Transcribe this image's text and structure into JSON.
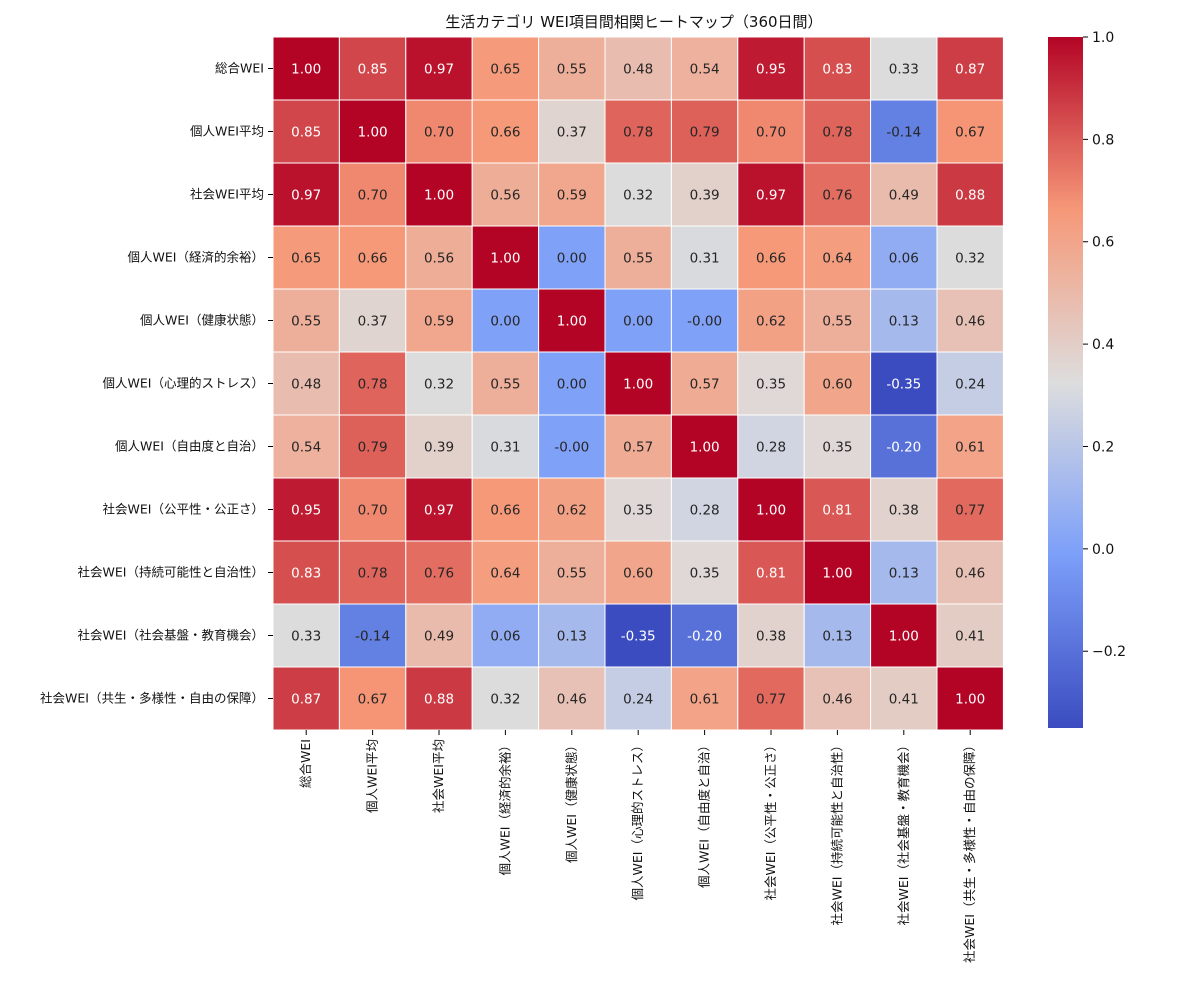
{
  "chart_data": {
    "type": "heatmap",
    "title": "生活カテゴリ WEI項目間相関ヒートマップ（360日間）",
    "labels": [
      "総合WEI",
      "個人WEI平均",
      "社会WEI平均",
      "個人WEI（経済的余裕）",
      "個人WEI（健康状態）",
      "個人WEI（心理的ストレス）",
      "個人WEI（自由度と自治）",
      "社会WEI（公平性・公正さ）",
      "社会WEI（持続可能性と自治性）",
      "社会WEI（社会基盤・教育機会）",
      "社会WEI（共生・多様性・自由の保障）"
    ],
    "display": [
      [
        "1.00",
        "0.85",
        "0.97",
        "0.65",
        "0.55",
        "0.48",
        "0.54",
        "0.95",
        "0.83",
        "0.33",
        "0.87"
      ],
      [
        "0.85",
        "1.00",
        "0.70",
        "0.66",
        "0.37",
        "0.78",
        "0.79",
        "0.70",
        "0.78",
        "-0.14",
        "0.67"
      ],
      [
        "0.97",
        "0.70",
        "1.00",
        "0.56",
        "0.59",
        "0.32",
        "0.39",
        "0.97",
        "0.76",
        "0.49",
        "0.88"
      ],
      [
        "0.65",
        "0.66",
        "0.56",
        "1.00",
        "0.00",
        "0.55",
        "0.31",
        "0.66",
        "0.64",
        "0.06",
        "0.32"
      ],
      [
        "0.55",
        "0.37",
        "0.59",
        "0.00",
        "1.00",
        "0.00",
        "-0.00",
        "0.62",
        "0.55",
        "0.13",
        "0.46"
      ],
      [
        "0.48",
        "0.78",
        "0.32",
        "0.55",
        "0.00",
        "1.00",
        "0.57",
        "0.35",
        "0.60",
        "-0.35",
        "0.24"
      ],
      [
        "0.54",
        "0.79",
        "0.39",
        "0.31",
        "-0.00",
        "0.57",
        "1.00",
        "0.28",
        "0.35",
        "-0.20",
        "0.61"
      ],
      [
        "0.95",
        "0.70",
        "0.97",
        "0.66",
        "0.62",
        "0.35",
        "0.28",
        "1.00",
        "0.81",
        "0.38",
        "0.77"
      ],
      [
        "0.83",
        "0.78",
        "0.76",
        "0.64",
        "0.55",
        "0.60",
        "0.35",
        "0.81",
        "1.00",
        "0.13",
        "0.46"
      ],
      [
        "0.33",
        "-0.14",
        "0.49",
        "0.06",
        "0.13",
        "-0.35",
        "-0.20",
        "0.38",
        "0.13",
        "1.00",
        "0.41"
      ],
      [
        "0.87",
        "0.67",
        "0.88",
        "0.32",
        "0.46",
        "0.24",
        "0.61",
        "0.77",
        "0.46",
        "0.41",
        "1.00"
      ]
    ],
    "vmin": -0.35,
    "vmax": 1.0,
    "colormap": "coolwarm",
    "colorbar": {
      "ticks": [
        -0.2,
        0.0,
        0.2,
        0.4,
        0.6,
        0.8,
        1.0
      ],
      "tick_labels": [
        "−0.2",
        "0.0",
        "0.2",
        "0.4",
        "0.6",
        "0.8",
        "1.0"
      ]
    },
    "colors": {
      "cold": "#3b4cc0",
      "neutral": "#dddddd",
      "hot": "#b40426",
      "text_dark": "#262626",
      "text_light": "#ffffff"
    }
  }
}
